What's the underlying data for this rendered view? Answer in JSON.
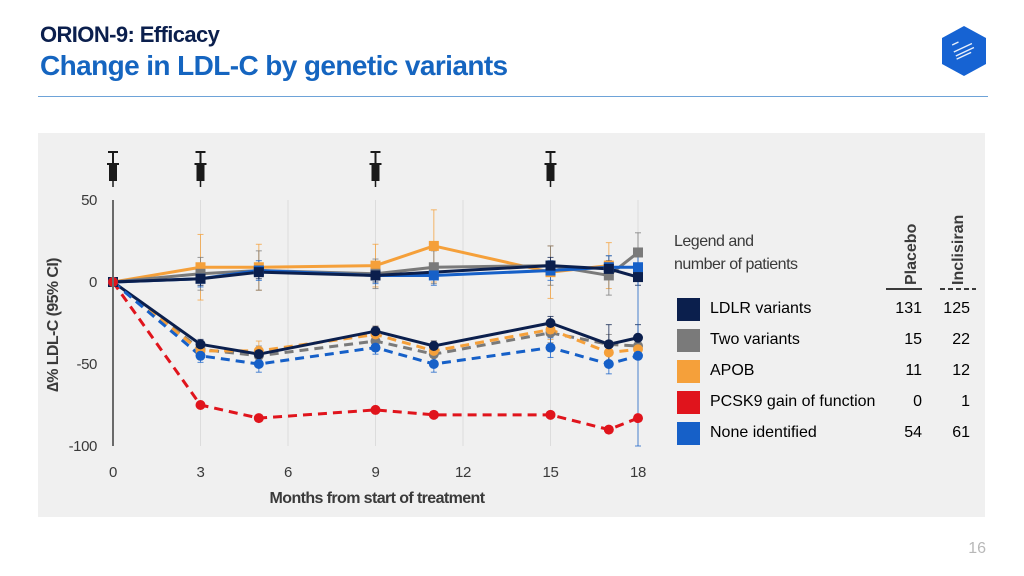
{
  "header": {
    "subtitle": "ORION-9: Efficacy",
    "title": "Change in LDL-C by genetic variants"
  },
  "page_number": "16",
  "colors": {
    "ldlr": "#0b1f4d",
    "two": "#7a7a7a",
    "apob": "#f5a03a",
    "pcsk9": "#e0141c",
    "none": "#1660c8",
    "title": "#1565c0",
    "logo": "#1663d3"
  },
  "legend": {
    "title_line1": "Legend and",
    "title_line2": "number of patients",
    "placebo_header": "Placebo",
    "inclisiran_header": "Inclisiran",
    "rows": [
      {
        "label": "LDLR variants",
        "placebo": "131",
        "inclisiran": "125",
        "color": "#0b1f4d"
      },
      {
        "label": "Two variants",
        "placebo": "15",
        "inclisiran": "22",
        "color": "#7a7a7a"
      },
      {
        "label": "APOB",
        "placebo": "11",
        "inclisiran": "12",
        "color": "#f5a03a"
      },
      {
        "label": "PCSK9 gain of function",
        "placebo": "0",
        "inclisiran": "1",
        "color": "#e0141c"
      },
      {
        "label": "None identified",
        "placebo": "54",
        "inclisiran": "61",
        "color": "#1660c8"
      }
    ]
  },
  "chart_data": {
    "type": "line",
    "xlabel": "Months from start of treatment",
    "ylabel": "∆% LDL-C (95% CI)",
    "xlim": [
      0,
      18
    ],
    "ylim": [
      -100,
      50
    ],
    "xticks": [
      0,
      3,
      6,
      9,
      12,
      15,
      18
    ],
    "yticks": [
      50,
      0,
      -50,
      -100
    ],
    "injection_months": [
      0,
      3,
      9,
      15
    ],
    "series": [
      {
        "name": "APOB placebo",
        "group": "APOB",
        "arm": "placebo",
        "color": "#f5a03a",
        "dashed": false,
        "marker": "square",
        "x": [
          0,
          3,
          5,
          9,
          11,
          15,
          17
        ],
        "y": [
          0,
          9,
          9,
          10,
          22,
          6,
          10
        ],
        "err": [
          0,
          20,
          14,
          13,
          22,
          16,
          14
        ]
      },
      {
        "name": "Two variants placebo",
        "group": "Two variants",
        "arm": "placebo",
        "color": "#7a7a7a",
        "dashed": false,
        "marker": "square",
        "x": [
          0,
          3,
          5,
          9,
          11,
          15,
          17,
          18
        ],
        "y": [
          0,
          5,
          7,
          5,
          9,
          10,
          4,
          18
        ],
        "err": [
          0,
          10,
          12,
          9,
          10,
          12,
          12,
          12
        ]
      },
      {
        "name": "None identified placebo",
        "group": "None identified",
        "arm": "placebo",
        "color": "#1660c8",
        "dashed": false,
        "marker": "square",
        "x": [
          0,
          3,
          5,
          9,
          11,
          15,
          17,
          18
        ],
        "y": [
          0,
          2,
          7,
          4,
          4,
          7,
          9,
          9
        ],
        "err": [
          0,
          5,
          6,
          5,
          6,
          6,
          7,
          8
        ]
      },
      {
        "name": "LDLR placebo",
        "group": "LDLR variants",
        "arm": "placebo",
        "color": "#0b1f4d",
        "dashed": false,
        "marker": "square",
        "x": [
          0,
          3,
          5,
          9,
          15,
          17,
          18
        ],
        "y": [
          0,
          2,
          6,
          4,
          10,
          8,
          3
        ],
        "err": [
          0,
          4,
          4,
          4,
          5,
          5,
          5
        ]
      },
      {
        "name": "Two variants inclisiran",
        "group": "Two variants",
        "arm": "inclisiran",
        "color": "#7a7a7a",
        "dashed": true,
        "marker": "circle",
        "x": [
          0,
          3,
          5,
          9,
          11,
          15,
          17,
          18
        ],
        "y": [
          0,
          -41,
          -45,
          -36,
          -44,
          -31,
          -38,
          -39
        ],
        "err": [
          0,
          5,
          6,
          5,
          6,
          6,
          6,
          6
        ]
      },
      {
        "name": "APOB inclisiran",
        "group": "APOB",
        "arm": "inclisiran",
        "color": "#f5a03a",
        "dashed": true,
        "marker": "circle",
        "x": [
          0,
          3,
          5,
          9,
          11,
          15,
          17,
          18
        ],
        "y": [
          0,
          -42,
          -42,
          -32,
          -42,
          -29,
          -43,
          -41
        ],
        "err": [
          0,
          5,
          6,
          5,
          6,
          6,
          6,
          6
        ]
      },
      {
        "name": "LDLR inclisiran",
        "group": "LDLR variants",
        "arm": "inclisiran",
        "color": "#0b1f4d",
        "dashed": false,
        "marker": "circle",
        "x": [
          0,
          3,
          5,
          9,
          11,
          15,
          17,
          18
        ],
        "y": [
          0,
          -38,
          -44,
          -30,
          -39,
          -25,
          -38,
          -34
        ],
        "err": [
          0,
          3,
          3,
          3,
          3,
          4,
          12,
          8
        ]
      },
      {
        "name": "None identified inclisiran",
        "group": "None identified",
        "arm": "inclisiran",
        "color": "#1660c8",
        "dashed": true,
        "marker": "circle",
        "x": [
          0,
          3,
          5,
          9,
          11,
          15,
          17,
          18
        ],
        "y": [
          0,
          -45,
          -50,
          -40,
          -50,
          -40,
          -50,
          -45
        ],
        "err": [
          0,
          4,
          5,
          4,
          5,
          6,
          6,
          55
        ]
      },
      {
        "name": "PCSK9 gain of function inclisiran",
        "group": "PCSK9 gain of function",
        "arm": "inclisiran",
        "color": "#e0141c",
        "dashed": true,
        "marker": "circle",
        "x": [
          0,
          3,
          5,
          9,
          11,
          15,
          17,
          18
        ],
        "y": [
          0,
          -75,
          -83,
          -78,
          -81,
          -81,
          -90,
          -83
        ],
        "err": [
          0,
          0,
          0,
          0,
          0,
          0,
          0,
          0
        ]
      }
    ]
  }
}
